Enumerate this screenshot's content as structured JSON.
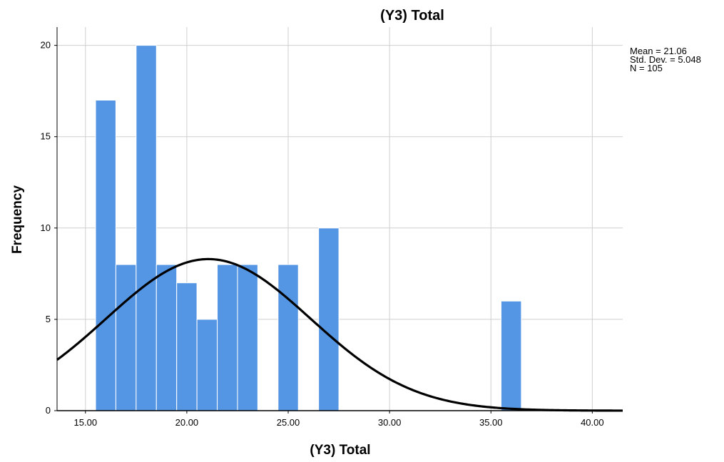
{
  "chart_data": {
    "type": "bar",
    "title": "(Y3) Total",
    "xlabel": "(Y3) Total",
    "ylabel": "Frequency",
    "xlim": [
      13.6,
      41.5
    ],
    "ylim": [
      0,
      21
    ],
    "x_ticks": [
      "15.00",
      "20.00",
      "25.00",
      "30.00",
      "35.00",
      "40.00"
    ],
    "x_tick_values": [
      15,
      20,
      25,
      30,
      35,
      40
    ],
    "y_ticks": [
      "0",
      "5",
      "10",
      "15",
      "20"
    ],
    "y_tick_values": [
      0,
      5,
      10,
      15,
      20
    ],
    "grid": true,
    "bar_color": "#5596e4",
    "bins": [
      {
        "x0": 15.5,
        "x1": 16.5,
        "count": 17
      },
      {
        "x0": 16.5,
        "x1": 17.5,
        "count": 8
      },
      {
        "x0": 17.5,
        "x1": 18.5,
        "count": 20
      },
      {
        "x0": 18.5,
        "x1": 19.5,
        "count": 8
      },
      {
        "x0": 19.5,
        "x1": 20.5,
        "count": 7
      },
      {
        "x0": 20.5,
        "x1": 21.5,
        "count": 5
      },
      {
        "x0": 21.5,
        "x1": 22.5,
        "count": 8
      },
      {
        "x0": 22.5,
        "x1": 23.5,
        "count": 8
      },
      {
        "x0": 24.5,
        "x1": 25.5,
        "count": 8
      },
      {
        "x0": 26.5,
        "x1": 27.5,
        "count": 10
      },
      {
        "x0": 35.5,
        "x1": 36.5,
        "count": 6
      }
    ],
    "normal_curve": {
      "mean": 21.06,
      "std_dev": 5.048,
      "n": 105,
      "bin_width": 1,
      "color": "#000000"
    },
    "stats_text": [
      "Mean = 21.06",
      "Std. Dev. = 5.048",
      "N = 105"
    ]
  }
}
